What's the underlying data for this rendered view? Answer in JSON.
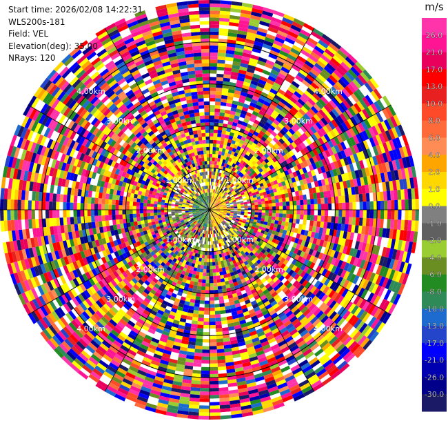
{
  "header": {
    "start_time": "Start time: 2026/02/08 14:22:31",
    "instrument": "WLS200s-181",
    "field": "Field: VEL",
    "elevation": "Elevation(deg): 35.00",
    "nrays": "NRays: 120"
  },
  "chart_data": {
    "type": "heatmap",
    "projection": "polar-ppi",
    "field": "VEL",
    "nrays": 120,
    "range_rings_km": [
      1,
      2,
      3,
      4
    ],
    "range_ring_labels": [
      "1.00km",
      "2.00km",
      "3.00km",
      "4.00km"
    ],
    "max_range_km": 5,
    "colorbar": {
      "unit": "m/s",
      "ticks": [
        "26.0",
        "21.0",
        "17.0",
        "13.0",
        "10.0",
        "8.0",
        "6.0",
        "4.0",
        "2.0",
        "1.0",
        "0.0",
        "-1.0",
        "-2.0",
        "-4.0",
        "-6.0",
        "-8.0",
        "-10.0",
        "-13.0",
        "-17.0",
        "-21.0",
        "-26.0",
        "-30.0"
      ],
      "colors_top_to_bottom": [
        "#ff33aa",
        "#ff1493",
        "#e8005c",
        "#ff0000",
        "#e82020",
        "#ff4a2a",
        "#ff6a3a",
        "#ff8c55",
        "#ffa500",
        "#ffd700",
        "#ffff00",
        "#808080",
        "#606060",
        "#9acd32",
        "#6b8e23",
        "#228b22",
        "#2e8b57",
        "#1e6bd0",
        "#2445c9",
        "#0000ff",
        "#0000b0",
        "#00008b",
        "#1a1a66"
      ]
    }
  }
}
